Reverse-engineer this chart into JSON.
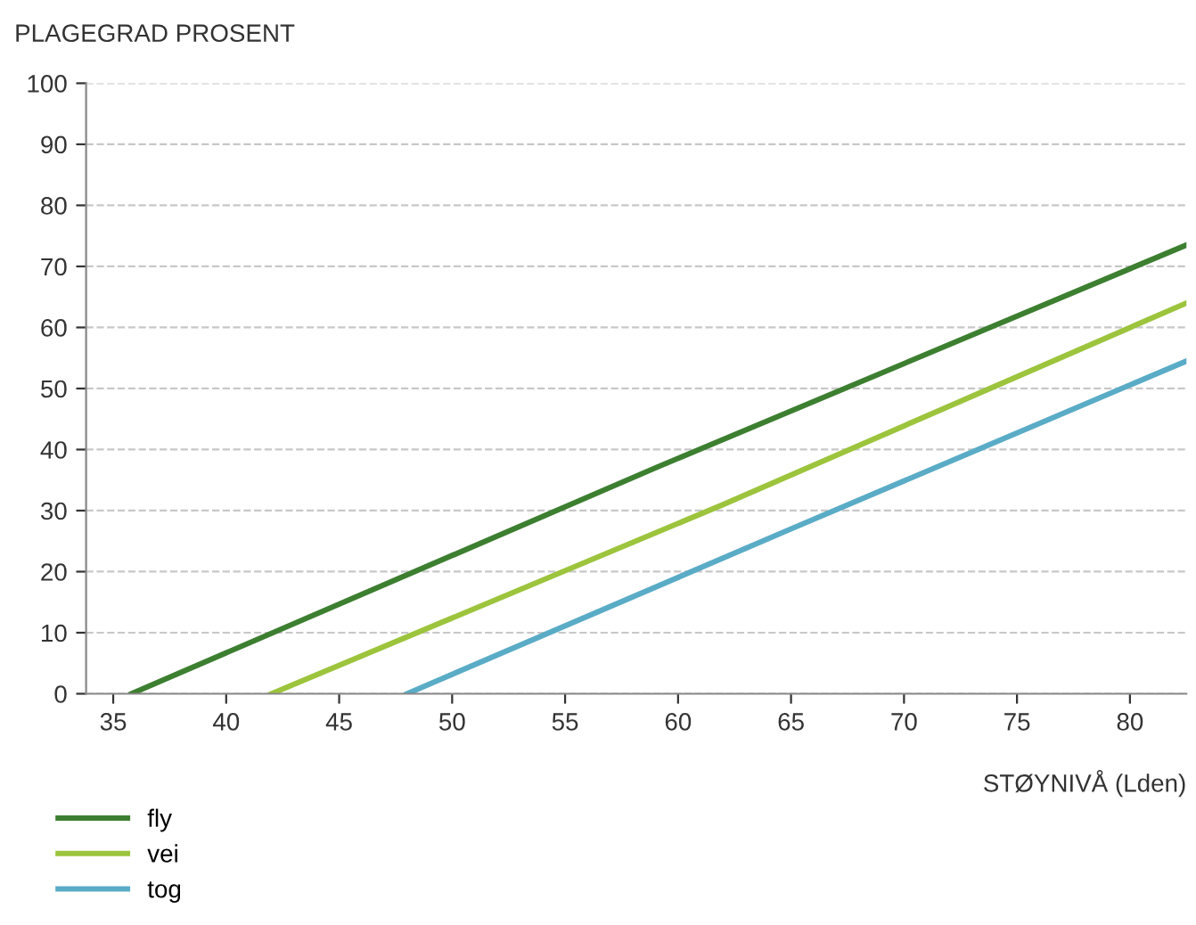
{
  "chart_data": {
    "type": "line",
    "ylabel": "PLAGEGRAD PROSENT",
    "xlabel": "STØYNIVÅ (Lden)",
    "series": [
      {
        "name": "fly",
        "color": "#3d7f30",
        "x": [
          35.8,
          59,
          82.5
        ],
        "values": [
          0,
          37,
          73.5
        ]
      },
      {
        "name": "vei",
        "color": "#9cc43c",
        "x": [
          42,
          62,
          82.5
        ],
        "values": [
          0,
          31,
          64
        ]
      },
      {
        "name": "tog",
        "color": "#5aacc6",
        "x": [
          48,
          65,
          82.5
        ],
        "values": [
          0,
          27,
          54.5
        ]
      }
    ],
    "xlim": [
      33.8,
      82.5
    ],
    "xticks": [
      35,
      40,
      45,
      50,
      55,
      60,
      65,
      70,
      75,
      80
    ],
    "ylim": [
      0,
      100
    ],
    "yticks": [
      0,
      10,
      20,
      30,
      40,
      50,
      60,
      70,
      80,
      90,
      100
    ],
    "grid": "y",
    "legend": "bottom left",
    "marker": "none",
    "line_style": "solid"
  }
}
